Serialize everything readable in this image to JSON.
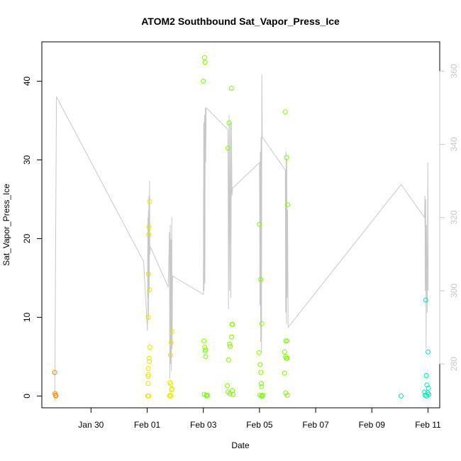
{
  "chart_data": {
    "type": "scatter",
    "title": "ATOM2 Southbound Sat_Vapor_Press_Ice",
    "xlabel": "Date",
    "ylabel": "Sat_Vapor_Press_Ice",
    "x_ticks": [
      "Jan 30",
      "Feb 01",
      "Feb 03",
      "Feb 05",
      "Feb 07",
      "Feb 09",
      "Feb 11"
    ],
    "x_tick_dates": [
      "2017-01-30",
      "2017-02-01",
      "2017-02-03",
      "2017-02-05",
      "2017-02-07",
      "2017-02-09",
      "2017-02-11"
    ],
    "xlim": [
      "2017-01-28T06:00",
      "2017-02-11T10:00"
    ],
    "ylim": [
      -1.5,
      45
    ],
    "y_ticks": [
      0,
      10,
      20,
      30,
      40
    ],
    "y2_ticks": [
      280,
      300,
      320,
      340,
      360
    ],
    "y2_lim": [
      268,
      368
    ],
    "y2_color": "#c8c8c8",
    "grid": false,
    "series": [
      {
        "color": "#ff8c00",
        "points": [
          [
            "2017-01-28T17:00",
            3.0
          ],
          [
            "2017-01-28T17:20",
            0.3
          ],
          [
            "2017-01-28T17:40",
            0.1
          ],
          [
            "2017-01-28T18:00",
            0.0
          ]
        ]
      },
      {
        "color": "#e6e600",
        "points": [
          [
            "2017-02-01T00:30",
            0.0
          ],
          [
            "2017-02-01T01:00",
            10.0
          ],
          [
            "2017-02-01T01:10",
            15.5
          ],
          [
            "2017-02-01T01:20",
            20.5
          ],
          [
            "2017-02-01T01:30",
            21.5
          ],
          [
            "2017-02-01T02:00",
            13.5
          ],
          [
            "2017-02-01T02:10",
            24.7
          ],
          [
            "2017-02-01T02:20",
            6.2
          ],
          [
            "2017-02-01T01:40",
            4.8
          ],
          [
            "2017-02-01T01:50",
            4.4
          ],
          [
            "2017-02-01T00:50",
            3.5
          ],
          [
            "2017-02-01T01:05",
            2.7
          ],
          [
            "2017-02-01T00:40",
            2.5
          ],
          [
            "2017-02-01T00:55",
            1.6
          ],
          [
            "2017-02-01T01:15",
            0.0
          ],
          [
            "2017-02-01T19:00",
            0.0
          ],
          [
            "2017-02-01T20:00",
            5.2
          ],
          [
            "2017-02-01T21:00",
            8.2
          ],
          [
            "2017-02-01T20:30",
            6.8
          ],
          [
            "2017-02-01T19:30",
            1.7
          ],
          [
            "2017-02-01T20:10",
            1.5
          ],
          [
            "2017-02-01T20:50",
            0.8
          ],
          [
            "2017-02-01T21:20",
            0.9
          ],
          [
            "2017-02-01T19:45",
            0.1
          ],
          [
            "2017-02-01T20:20",
            0.0
          ]
        ]
      },
      {
        "color": "#7cfc00",
        "points": [
          [
            "2017-02-03T00:00",
            40.0
          ],
          [
            "2017-02-03T01:00",
            43.0
          ],
          [
            "2017-02-03T01:30",
            42.4
          ],
          [
            "2017-02-03T00:30",
            7.0
          ],
          [
            "2017-02-03T01:10",
            6.2
          ],
          [
            "2017-02-03T01:40",
            5.7
          ],
          [
            "2017-02-03T01:50",
            5.9
          ],
          [
            "2017-02-03T02:00",
            5.0
          ],
          [
            "2017-02-03T00:50",
            0.2
          ],
          [
            "2017-02-03T02:30",
            0.1
          ],
          [
            "2017-02-03T03:00",
            0.0
          ],
          [
            "2017-02-03T03:30",
            0.1
          ],
          [
            "2017-02-03T21:00",
            31.5
          ],
          [
            "2017-02-03T22:00",
            34.7
          ],
          [
            "2017-02-04T00:00",
            39.1
          ],
          [
            "2017-02-03T22:30",
            6.6
          ],
          [
            "2017-02-03T23:00",
            6.3
          ],
          [
            "2017-02-04T00:30",
            9.1
          ],
          [
            "2017-02-04T01:00",
            9.1
          ],
          [
            "2017-02-04T00:10",
            7.5
          ],
          [
            "2017-02-03T21:30",
            4.6
          ],
          [
            "2017-02-03T20:30",
            1.3
          ],
          [
            "2017-02-03T21:10",
            0.5
          ],
          [
            "2017-02-03T22:40",
            0.3
          ],
          [
            "2017-02-04T00:50",
            0.7
          ],
          [
            "2017-02-04T01:20",
            0.2
          ],
          [
            "2017-02-05T00:00",
            21.8
          ],
          [
            "2017-02-05T01:00",
            14.8
          ],
          [
            "2017-02-05T02:00",
            9.2
          ],
          [
            "2017-02-04T23:30",
            5.5
          ],
          [
            "2017-02-05T00:30",
            4.0
          ],
          [
            "2017-02-05T01:10",
            3.0
          ],
          [
            "2017-02-05T01:30",
            1.6
          ],
          [
            "2017-02-05T01:50",
            1.2
          ],
          [
            "2017-02-05T00:20",
            0.1
          ],
          [
            "2017-02-05T01:40",
            0.0
          ],
          [
            "2017-02-05T02:30",
            0.0
          ],
          [
            "2017-02-05T03:00",
            0.1
          ],
          [
            "2017-02-05T22:00",
            36.1
          ],
          [
            "2017-02-05T23:00",
            30.3
          ],
          [
            "2017-02-06T00:00",
            24.3
          ],
          [
            "2017-02-05T21:30",
            5.6
          ],
          [
            "2017-02-05T22:30",
            7.0
          ],
          [
            "2017-02-05T23:30",
            7.0
          ],
          [
            "2017-02-05T22:10",
            5.0
          ],
          [
            "2017-02-05T22:50",
            4.8
          ],
          [
            "2017-02-05T23:40",
            4.8
          ],
          [
            "2017-02-05T21:20",
            2.9
          ],
          [
            "2017-02-05T22:20",
            0.4
          ],
          [
            "2017-02-05T23:50",
            0.1
          ]
        ]
      },
      {
        "color": "#00e6b4",
        "points": [
          [
            "2017-02-10T01:00",
            0.0
          ],
          [
            "2017-02-10T21:00",
            0.5
          ],
          [
            "2017-02-10T22:00",
            12.2
          ],
          [
            "2017-02-11T00:00",
            5.6
          ],
          [
            "2017-02-10T22:30",
            2.6
          ],
          [
            "2017-02-10T23:00",
            1.4
          ],
          [
            "2017-02-11T00:20",
            1.0
          ],
          [
            "2017-02-10T23:40",
            0.4
          ],
          [
            "2017-02-10T21:30",
            0.1
          ],
          [
            "2017-02-10T22:50",
            0.0
          ],
          [
            "2017-02-11T00:40",
            0.2
          ]
        ]
      }
    ],
    "line_series": {
      "color": "#c8c8c8",
      "axis": "right",
      "points": [
        [
          "2017-01-28T17:00",
          270
        ],
        [
          "2017-01-28T18:30",
          353
        ],
        [
          "2017-01-31T21:00",
          308
        ],
        [
          "2017-02-01T00:15",
          289
        ],
        [
          "2017-02-01T00:35",
          320
        ],
        [
          "2017-02-01T00:50",
          298
        ],
        [
          "2017-02-01T01:00",
          322
        ],
        [
          "2017-02-01T01:15",
          292
        ],
        [
          "2017-02-01T01:30",
          326
        ],
        [
          "2017-02-01T01:50",
          300
        ],
        [
          "2017-02-01T02:05",
          330
        ],
        [
          "2017-02-01T02:20",
          310
        ],
        [
          "2017-02-01T02:40",
          312
        ],
        [
          "2017-02-01T18:00",
          301
        ],
        [
          "2017-02-01T19:00",
          316
        ],
        [
          "2017-02-01T19:20",
          276
        ],
        [
          "2017-02-01T19:40",
          318
        ],
        [
          "2017-02-01T20:00",
          280
        ],
        [
          "2017-02-01T20:20",
          314
        ],
        [
          "2017-02-01T20:40",
          278
        ],
        [
          "2017-02-01T21:00",
          320
        ],
        [
          "2017-02-01T21:20",
          284
        ],
        [
          "2017-02-01T21:40",
          304
        ],
        [
          "2017-02-03T00:00",
          299
        ],
        [
          "2017-02-03T00:20",
          346
        ],
        [
          "2017-02-03T00:40",
          300
        ],
        [
          "2017-02-03T01:00",
          348
        ],
        [
          "2017-02-03T01:20",
          302
        ],
        [
          "2017-02-03T01:40",
          350
        ],
        [
          "2017-02-03T02:00",
          335
        ],
        [
          "2017-02-03T02:30",
          350
        ],
        [
          "2017-02-03T21:00",
          344
        ],
        [
          "2017-02-03T21:30",
          295
        ],
        [
          "2017-02-03T22:00",
          348
        ],
        [
          "2017-02-03T22:30",
          300
        ],
        [
          "2017-02-03T23:00",
          346
        ],
        [
          "2017-02-03T23:30",
          298
        ],
        [
          "2017-02-04T00:00",
          346
        ],
        [
          "2017-02-04T00:30",
          326
        ],
        [
          "2017-02-04T01:00",
          328
        ],
        [
          "2017-02-05T00:00",
          335
        ],
        [
          "2017-02-05T00:20",
          296
        ],
        [
          "2017-02-05T00:40",
          338
        ],
        [
          "2017-02-05T01:00",
          286
        ],
        [
          "2017-02-05T01:20",
          342
        ],
        [
          "2017-02-05T01:40",
          283
        ],
        [
          "2017-02-05T02:00",
          359
        ],
        [
          "2017-02-05T02:20",
          342
        ],
        [
          "2017-02-05T22:00",
          333
        ],
        [
          "2017-02-05T22:20",
          294
        ],
        [
          "2017-02-05T22:40",
          338
        ],
        [
          "2017-02-05T23:00",
          291
        ],
        [
          "2017-02-05T23:20",
          336
        ],
        [
          "2017-02-05T23:40",
          298
        ],
        [
          "2017-02-06T00:00",
          322
        ],
        [
          "2017-02-06T00:30",
          290
        ],
        [
          "2017-02-10T01:00",
          329
        ],
        [
          "2017-02-10T21:00",
          320
        ],
        [
          "2017-02-10T21:20",
          326
        ],
        [
          "2017-02-10T21:40",
          300
        ],
        [
          "2017-02-10T22:00",
          325
        ],
        [
          "2017-02-10T22:20",
          284
        ],
        [
          "2017-02-10T22:40",
          318
        ],
        [
          "2017-02-10T23:20",
          294
        ],
        [
          "2017-02-10T23:50",
          335
        ],
        [
          "2017-02-11T00:10",
          300
        ]
      ]
    }
  }
}
